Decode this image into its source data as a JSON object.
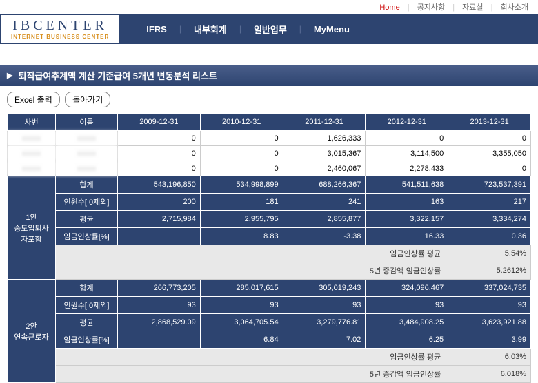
{
  "top_links": {
    "home": "Home",
    "link1": "공지사항",
    "link2": "자료실",
    "link3": "회사소개"
  },
  "logo": {
    "main": "IBCENTER",
    "sub": "INTERNET BUSINESS CENTER"
  },
  "nav": {
    "items": [
      "IFRS",
      "내부회계",
      "일반업무",
      "MyMenu"
    ]
  },
  "page_title": "퇴직급여추계액 계산 기준급여 5개년 변동분석 리스트",
  "buttons": {
    "excel": "Excel 출력",
    "back": "돌아가기"
  },
  "table": {
    "headers": [
      "사번",
      "이름",
      "2009-12-31",
      "2010-12-31",
      "2011-12-31",
      "2012-12-31",
      "2013-12-31"
    ],
    "data_rows": [
      {
        "id": "xxxxx",
        "name": "xxxxx",
        "vals": [
          "0",
          "0",
          "1,626,333",
          "0",
          "0"
        ]
      },
      {
        "id": "xxxxx",
        "name": "xxxxx",
        "vals": [
          "0",
          "0",
          "3,015,367",
          "3,114,500",
          "3,355,050"
        ]
      },
      {
        "id": "xxxxx",
        "name": "xxxxx",
        "vals": [
          "0",
          "0",
          "2,460,067",
          "2,278,433",
          "0"
        ]
      }
    ],
    "sections": [
      {
        "title_line1": "1안",
        "title_line2": "중도입퇴사자포함",
        "rows": [
          {
            "label": "합계",
            "vals": [
              "543,196,850",
              "534,998,899",
              "688,266,367",
              "541,511,638",
              "723,537,391"
            ]
          },
          {
            "label": "인원수[ 0제외]",
            "vals": [
              "200",
              "181",
              "241",
              "163",
              "217"
            ]
          },
          {
            "label": "평균",
            "vals": [
              "2,715,984",
              "2,955,795",
              "2,855,877",
              "3,322,157",
              "3,334,274"
            ]
          },
          {
            "label": "임금인상률[%]",
            "vals": [
              "",
              "8.83",
              "-3.38",
              "16.33",
              "0.36"
            ]
          }
        ],
        "summary": [
          {
            "label": "임금인상률 평균",
            "val": "5.54%"
          },
          {
            "label": "5년 증감액 임금인상률",
            "val": "5.2612%"
          }
        ]
      },
      {
        "title_line1": "2안",
        "title_line2": "연속근로자",
        "rows": [
          {
            "label": "합계",
            "vals": [
              "266,773,205",
              "285,017,615",
              "305,019,243",
              "324,096,467",
              "337,024,735"
            ]
          },
          {
            "label": "인원수[ 0제외]",
            "vals": [
              "93",
              "93",
              "93",
              "93",
              "93"
            ]
          },
          {
            "label": "평균",
            "vals": [
              "2,868,529.09",
              "3,064,705.54",
              "3,279,776.81",
              "3,484,908.25",
              "3,623,921.88"
            ]
          },
          {
            "label": "임금인상률[%]",
            "vals": [
              "",
              "6.84",
              "7.02",
              "6.25",
              "3.99"
            ]
          }
        ],
        "summary": [
          {
            "label": "임금인상률 평균",
            "val": "6.03%"
          },
          {
            "label": "5년 증감액 임금인상률",
            "val": "6.018%"
          }
        ]
      }
    ]
  }
}
